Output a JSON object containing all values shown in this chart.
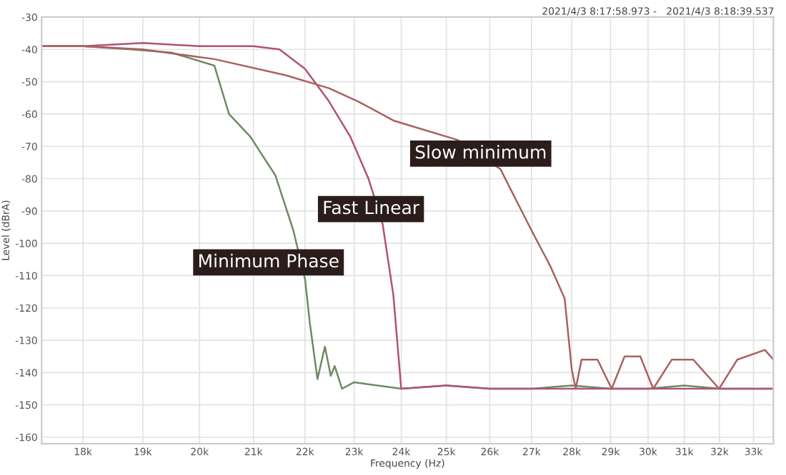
{
  "chart_data": {
    "type": "line",
    "xlabel": "Frequency (Hz)",
    "ylabel": "Level (dBrA)",
    "annotations": [
      "2021/4/3 8:17:58.973 -   2021/4/3 8:18:39.537"
    ],
    "log": "x",
    "grid": true,
    "legend": false,
    "line_style": "solid",
    "marker": "none",
    "xlim": [
      17340,
      33600
    ],
    "ylim": [
      -162,
      -30
    ],
    "xticks": [
      {
        "value": 18000,
        "label": "18k"
      },
      {
        "value": 19000,
        "label": "19k"
      },
      {
        "value": 20000,
        "label": "20k"
      },
      {
        "value": 21000,
        "label": "21k"
      },
      {
        "value": 22000,
        "label": "22k"
      },
      {
        "value": 23000,
        "label": "23k"
      },
      {
        "value": 24000,
        "label": "24k"
      },
      {
        "value": 25000,
        "label": "25k"
      },
      {
        "value": 26000,
        "label": "26k"
      },
      {
        "value": 27000,
        "label": "27k"
      },
      {
        "value": 28000,
        "label": "28k"
      },
      {
        "value": 29000,
        "label": "29k"
      },
      {
        "value": 30000,
        "label": "30k"
      },
      {
        "value": 31000,
        "label": "31k"
      },
      {
        "value": 32000,
        "label": "32k"
      },
      {
        "value": 33000,
        "label": "33k"
      }
    ],
    "yticks": [
      -30,
      -40,
      -50,
      -60,
      -70,
      -80,
      -90,
      -100,
      -110,
      -120,
      -130,
      -140,
      -150,
      -160
    ],
    "series": [
      {
        "name": "Minimum Phase",
        "color": "#6f8a62",
        "x": [
          17340,
          18000,
          18800,
          19500,
          20270,
          20540,
          20940,
          21420,
          21770,
          22000,
          22100,
          22250,
          22400,
          22520,
          22600,
          22750,
          23000,
          24000,
          25000,
          26000,
          27000,
          28000,
          29000,
          30000,
          31000,
          32000,
          33000,
          33600
        ],
        "values": [
          -39,
          -39,
          -40,
          -41,
          -45,
          -60,
          -67,
          -79,
          -96,
          -111,
          -125,
          -142,
          -132,
          -141,
          -138,
          -145,
          -143,
          -145,
          -144,
          -145,
          -145,
          -144,
          -145,
          -145,
          -144,
          -145,
          -145,
          -145
        ]
      },
      {
        "name": "Fast Linear",
        "color": "#b0527c",
        "x": [
          17340,
          18000,
          19000,
          20000,
          21000,
          21500,
          22000,
          22480,
          22920,
          23300,
          23600,
          23830,
          24000,
          25000,
          26000,
          27000,
          28000,
          29000,
          30000,
          31000,
          32000,
          33000,
          33600
        ],
        "values": [
          -39,
          -39,
          -38,
          -39,
          -39,
          -40,
          -46,
          -56,
          -67,
          -80,
          -94,
          -116,
          -145,
          -144,
          -145,
          -145,
          -145,
          -145,
          -145,
          -145,
          -145,
          -145,
          -145
        ]
      },
      {
        "name": "Slow minimum",
        "color": "#a8625e",
        "x": [
          17340,
          18000,
          19000,
          20270,
          21620,
          22480,
          23070,
          23830,
          24290,
          25250,
          26250,
          27000,
          27460,
          27820,
          28000,
          28100,
          28250,
          28660,
          29030,
          29370,
          29790,
          30140,
          30650,
          31250,
          31990,
          32520,
          33340,
          33600
        ],
        "values": [
          -39,
          -39,
          -40,
          -43,
          -48,
          -52,
          -56,
          -62,
          -64,
          -68,
          -77,
          -96,
          -107,
          -117,
          -139,
          -145,
          -136,
          -136,
          -145,
          -135,
          -135,
          -145,
          -136,
          -136,
          -145,
          -136,
          -133,
          -136
        ]
      }
    ]
  }
}
